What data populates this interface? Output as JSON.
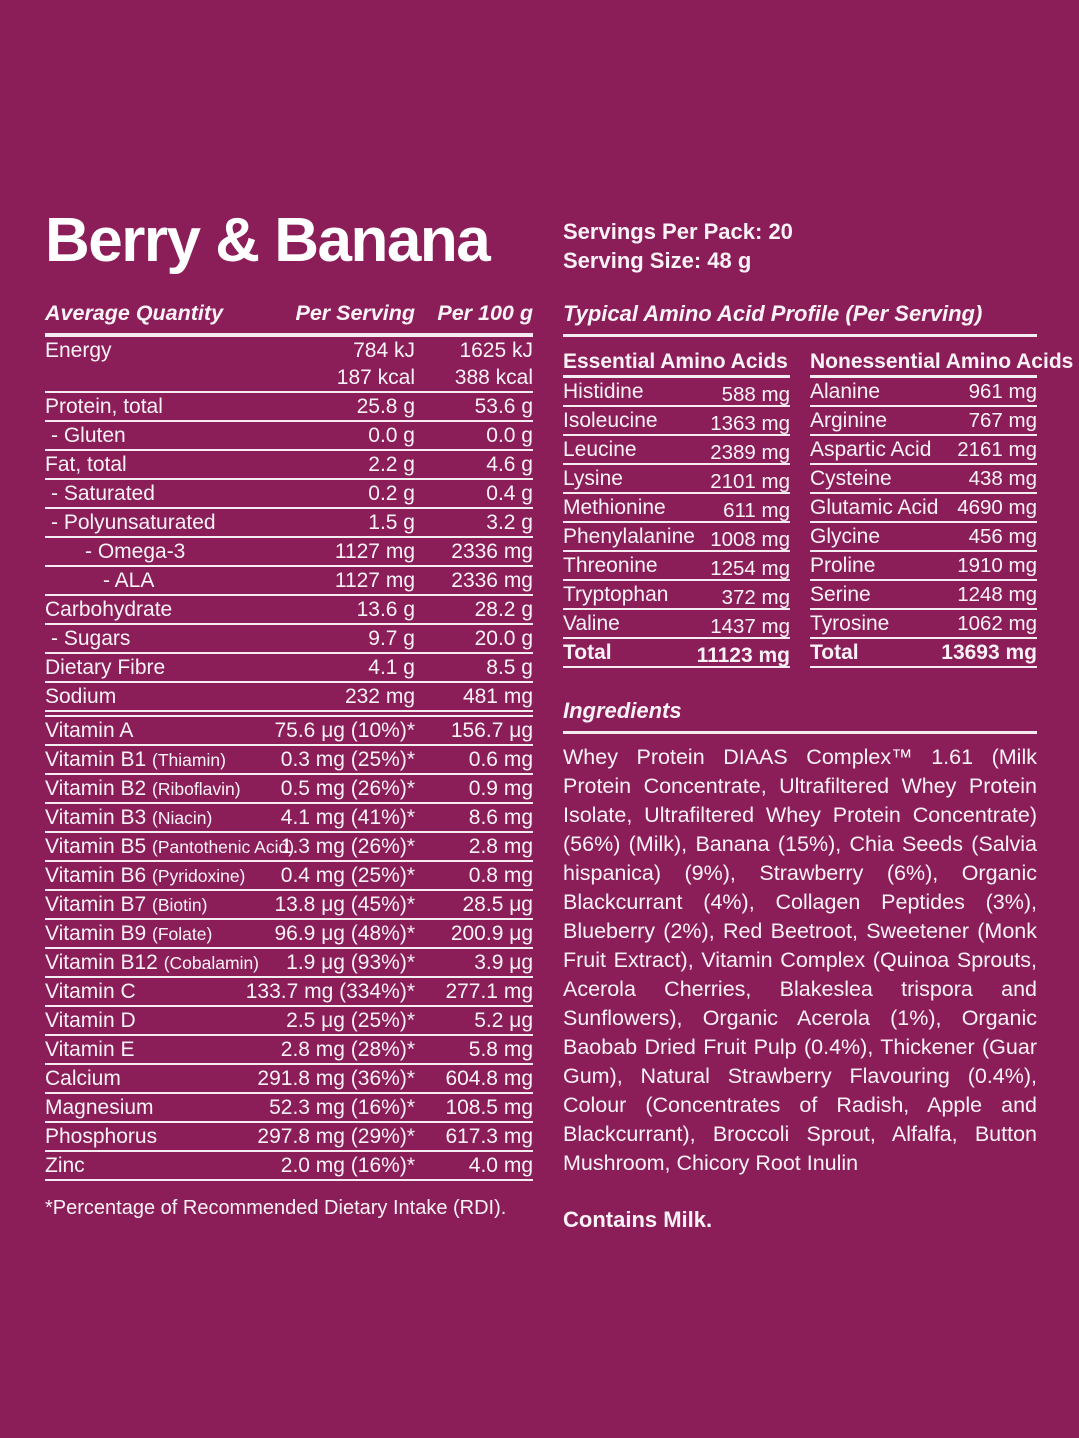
{
  "theme": {
    "bg": "#8B1E58",
    "text": "#FBF2F7",
    "line": "#F7EBF2"
  },
  "header": {
    "title": "Berry & Banana",
    "servings_per_pack": "Servings Per Pack: 20",
    "serving_size": "Serving Size: 48 g"
  },
  "nutrition": {
    "headers": {
      "label": "Average Quantity",
      "per_serving": "Per Serving",
      "per_100g": "Per 100 g"
    },
    "rows": [
      {
        "label": "Energy",
        "indent": 0,
        "ps": "784 kJ",
        "p100": "1625 kJ",
        "noline": true
      },
      {
        "label": "",
        "indent": 0,
        "ps": "187 kcal",
        "p100": "388 kcal"
      },
      {
        "label": "Protein, total",
        "indent": 0,
        "ps": "25.8 g",
        "p100": "53.6 g"
      },
      {
        "label": "- Gluten",
        "indent": 1,
        "ps": "0.0 g",
        "p100": "0.0 g"
      },
      {
        "label": "Fat, total",
        "indent": 0,
        "ps": "2.2 g",
        "p100": "4.6 g"
      },
      {
        "label": "- Saturated",
        "indent": 1,
        "ps": "0.2 g",
        "p100": "0.4 g"
      },
      {
        "label": "- Polyunsaturated",
        "indent": 1,
        "ps": "1.5 g",
        "p100": "3.2 g"
      },
      {
        "label": "- Omega-3",
        "indent": 2,
        "ps": "1127 mg",
        "p100": "2336 mg"
      },
      {
        "label": "- ALA",
        "indent": 3,
        "ps": "1127 mg",
        "p100": "2336 mg"
      },
      {
        "label": "Carbohydrate",
        "indent": 0,
        "ps": "13.6 g",
        "p100": "28.2 g"
      },
      {
        "label": "- Sugars",
        "indent": 1,
        "ps": "9.7 g",
        "p100": "20.0 g"
      },
      {
        "label": "Dietary Fibre",
        "indent": 0,
        "ps": "4.1 g",
        "p100": "8.5 g"
      },
      {
        "label": "Sodium",
        "indent": 0,
        "ps": "232 mg",
        "p100": "481 mg",
        "divider": true
      },
      {
        "label": "Vitamin A",
        "indent": 0,
        "ps": "75.6 μg (10%)*",
        "p100": "156.7 μg"
      },
      {
        "label": "Vitamin B1",
        "sub": "(Thiamin)",
        "indent": 0,
        "ps": "0.3 mg (25%)*",
        "p100": "0.6 mg"
      },
      {
        "label": "Vitamin B2",
        "sub": "(Riboflavin)",
        "indent": 0,
        "ps": "0.5 mg (26%)*",
        "p100": "0.9 mg"
      },
      {
        "label": "Vitamin B3",
        "sub": "(Niacin)",
        "indent": 0,
        "ps": "4.1 mg (41%)*",
        "p100": "8.6 mg"
      },
      {
        "label": "Vitamin B5",
        "sub": "(Pantothenic Acid)",
        "indent": 0,
        "ps": "1.3 mg (26%)*",
        "p100": "2.8 mg"
      },
      {
        "label": "Vitamin B6",
        "sub": "(Pyridoxine)",
        "indent": 0,
        "ps": "0.4 mg (25%)*",
        "p100": "0.8 mg"
      },
      {
        "label": "Vitamin B7",
        "sub": "(Biotin)",
        "indent": 0,
        "ps": "13.8 μg (45%)*",
        "p100": "28.5 μg"
      },
      {
        "label": "Vitamin B9",
        "sub": "(Folate)",
        "indent": 0,
        "ps": "96.9 μg (48%)*",
        "p100": "200.9 μg"
      },
      {
        "label": "Vitamin B12",
        "sub": "(Cobalamin)",
        "indent": 0,
        "ps": "1.9 μg (93%)*",
        "p100": "3.9 μg"
      },
      {
        "label": "Vitamin C",
        "indent": 0,
        "ps": "133.7 mg (334%)*",
        "p100": "277.1 mg"
      },
      {
        "label": "Vitamin D",
        "indent": 0,
        "ps": "2.5 μg (25%)*",
        "p100": "5.2 μg"
      },
      {
        "label": "Vitamin E",
        "indent": 0,
        "ps": "2.8 mg (28%)*",
        "p100": "5.8 mg"
      },
      {
        "label": "Calcium",
        "indent": 0,
        "ps": "291.8 mg (36%)*",
        "p100": "604.8 mg"
      },
      {
        "label": "Magnesium",
        "indent": 0,
        "ps": "52.3 mg (16%)*",
        "p100": "108.5 mg"
      },
      {
        "label": "Phosphorus",
        "indent": 0,
        "ps": "297.8 mg (29%)*",
        "p100": "617.3 mg"
      },
      {
        "label": "Zinc",
        "indent": 0,
        "ps": "2.0 mg (16%)*",
        "p100": "4.0 mg"
      }
    ],
    "footnote": "*Percentage of Recommended Dietary Intake (RDI)."
  },
  "amino": {
    "title": "Typical Amino Acid Profile (Per Serving)",
    "tables": [
      {
        "id": "essential",
        "header": "Essential Amino Acids",
        "rows": [
          {
            "label": "Histidine",
            "value": "588 mg"
          },
          {
            "label": "Isoleucine",
            "value": "1363 mg"
          },
          {
            "label": "Leucine",
            "value": "2389 mg"
          },
          {
            "label": "Lysine",
            "value": "2101 mg"
          },
          {
            "label": "Methionine",
            "value": "611 mg"
          },
          {
            "label": "Phenylalanine",
            "value": "1008 mg"
          },
          {
            "label": "Threonine",
            "value": "1254 mg"
          },
          {
            "label": "Tryptophan",
            "value": "372 mg"
          },
          {
            "label": "Valine",
            "value": "1437 mg"
          }
        ],
        "total_label": "Total",
        "total_value": "11123 mg"
      },
      {
        "id": "nonessential",
        "header": "Nonessential Amino Acids",
        "rows": [
          {
            "label": "Alanine",
            "value": "961 mg"
          },
          {
            "label": "Arginine",
            "value": "767 mg"
          },
          {
            "label": "Aspartic Acid",
            "value": "2161 mg"
          },
          {
            "label": "Cysteine",
            "value": "438 mg"
          },
          {
            "label": "Glutamic Acid",
            "value": "4690 mg"
          },
          {
            "label": "Glycine",
            "value": "456 mg"
          },
          {
            "label": "Proline",
            "value": "1910 mg"
          },
          {
            "label": "Serine",
            "value": "1248 mg"
          },
          {
            "label": "Tyrosine",
            "value": "1062 mg"
          }
        ],
        "total_label": "Total",
        "total_value": "13693 mg"
      }
    ]
  },
  "ingredients": {
    "title": "Ingredients",
    "body": "Whey Protein DIAAS Complex™ 1.61 (Milk Protein Concentrate, Ultrafiltered Whey Protein Isolate, Ultrafiltered Whey Protein Concentrate) (56%) (Milk), Banana (15%), Chia Seeds (Salvia hispanica) (9%), Strawberry (6%), Organic Blackcurrant (4%), Collagen Peptides (3%), Blueberry (2%), Red Beetroot, Sweetener (Monk Fruit Extract), Vitamin Complex (Quinoa Sprouts, Acerola Cherries, Blakeslea trispora and Sunflowers), Organic Acerola (1%), Organic Baobab Dried Fruit Pulp (0.4%), Thickener (Guar Gum), Natural Strawberry Flavouring (0.4%), Colour (Concentrates of Radish, Apple and Blackcurrant), Broccoli Sprout, Alfalfa, Button Mushroom, Chicory Root Inulin",
    "allergen": "Contains Milk."
  }
}
